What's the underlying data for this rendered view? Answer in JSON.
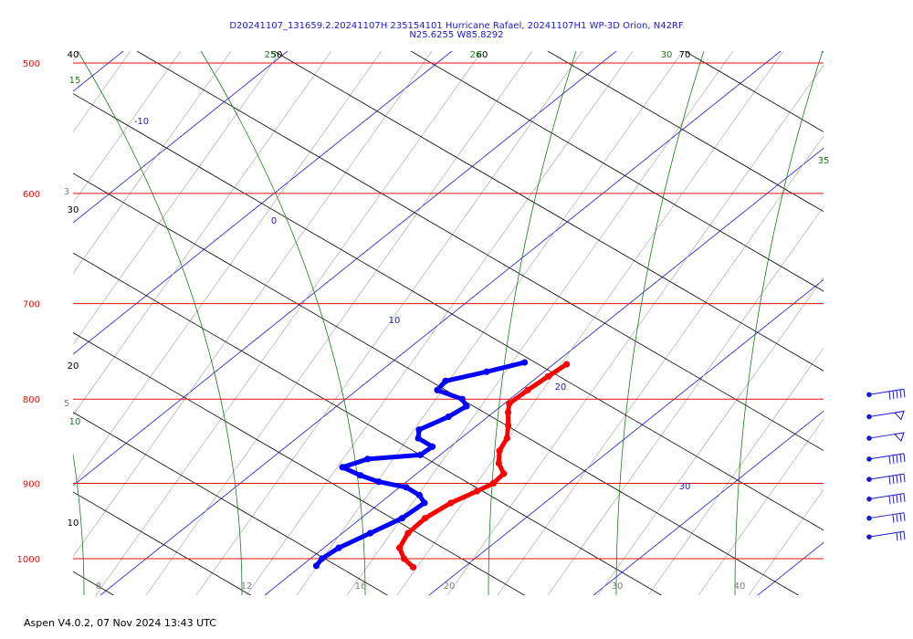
{
  "header": {
    "title_line1": "D20241107_131659.2.20241107H 235154101 Hurricane Rafael, 20241107H1 WP-3D Orion, N42RF",
    "title_line2": "N25.6255 W85.8292"
  },
  "footer": {
    "text": "Aspen V4.0.2, 07 Nov  2024  13:43 UTC"
  },
  "colors": {
    "isobar": "#e01010",
    "isotherm": "#1a1ad0",
    "dry_adiabat": "#000000",
    "moist_adiabat": "#1e7a1e",
    "mixing_ratio": "#a0a0a0",
    "temperature": "#ff0000",
    "dewpoint": "#0000ff",
    "wind": "#1a1ad0"
  },
  "chart_data": {
    "type": "skew-t",
    "pressure_ticks": [
      "500",
      "600",
      "700",
      "800",
      "900",
      "1000"
    ],
    "isobars_hpa": [
      500,
      600,
      700,
      800,
      900,
      1000
    ],
    "temperature_ticks": [
      "8",
      "12",
      "16",
      "20",
      "30",
      "40"
    ],
    "isotherm_labels": [
      "-10",
      "0",
      "10",
      "20",
      "30"
    ],
    "dry_adiabat_labels": [
      "40",
      "50",
      "60",
      "70",
      "30",
      "20",
      "10"
    ],
    "moist_adiabat_labels": [
      "15",
      "25",
      "26",
      "30",
      "35",
      "10"
    ],
    "mixing_ratio_labels": [
      "3",
      "5"
    ],
    "temperature_profile": [
      {
        "p": 762,
        "t": 10.8
      },
      {
        "p": 775,
        "t": 10.6
      },
      {
        "p": 790,
        "t": 10.4
      },
      {
        "p": 805,
        "t": 10.3
      },
      {
        "p": 815,
        "t": 10.9
      },
      {
        "p": 830,
        "t": 11.9
      },
      {
        "p": 845,
        "t": 12.8
      },
      {
        "p": 860,
        "t": 13.3
      },
      {
        "p": 875,
        "t": 14.2
      },
      {
        "p": 888,
        "t": 15.3
      },
      {
        "p": 900,
        "t": 15.4
      },
      {
        "p": 910,
        "t": 15.0
      },
      {
        "p": 925,
        "t": 14.3
      },
      {
        "p": 945,
        "t": 13.9
      },
      {
        "p": 965,
        "t": 14.0
      },
      {
        "p": 985,
        "t": 14.6
      },
      {
        "p": 1000,
        "t": 15.7
      },
      {
        "p": 1012,
        "t": 16.9
      }
    ],
    "dewpoint_profile": [
      {
        "p": 760,
        "t": 8.1
      },
      {
        "p": 770,
        "t": 6.5
      },
      {
        "p": 780,
        "t": 4.7
      },
      {
        "p": 790,
        "t": 4.9
      },
      {
        "p": 800,
        "t": 7.1
      },
      {
        "p": 808,
        "t": 7.9
      },
      {
        "p": 820,
        "t": 7.6
      },
      {
        "p": 835,
        "t": 6.8
      },
      {
        "p": 845,
        "t": 7.4
      },
      {
        "p": 855,
        "t": 8.9
      },
      {
        "p": 865,
        "t": 8.8
      },
      {
        "p": 870,
        "t": 5.9
      },
      {
        "p": 880,
        "t": 5.0
      },
      {
        "p": 890,
        "t": 6.7
      },
      {
        "p": 898,
        "t": 8.3
      },
      {
        "p": 905,
        "t": 10.4
      },
      {
        "p": 915,
        "t": 11.8
      },
      {
        "p": 925,
        "t": 12.7
      },
      {
        "p": 945,
        "t": 12.5
      },
      {
        "p": 965,
        "t": 11.7
      },
      {
        "p": 985,
        "t": 10.9
      },
      {
        "p": 1000,
        "t": 10.7
      },
      {
        "p": 1010,
        "t": 10.9
      }
    ],
    "wind_barbs": [
      {
        "p": 795,
        "kind": "barbs",
        "count": 5
      },
      {
        "p": 820,
        "kind": "flag"
      },
      {
        "p": 845,
        "kind": "flag"
      },
      {
        "p": 870,
        "kind": "barbs",
        "count": 5
      },
      {
        "p": 895,
        "kind": "barbs",
        "count": 5
      },
      {
        "p": 920,
        "kind": "barbs",
        "count": 5
      },
      {
        "p": 945,
        "kind": "barbs",
        "count": 4
      },
      {
        "p": 970,
        "kind": "barbs",
        "count": 3
      }
    ]
  }
}
